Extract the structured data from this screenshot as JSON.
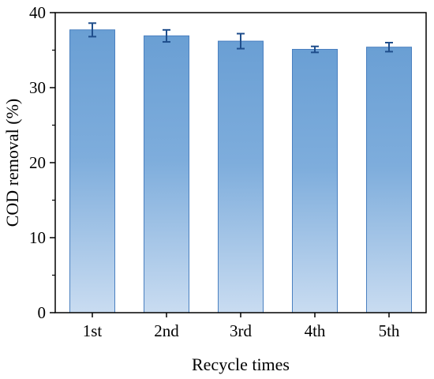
{
  "chart_data": {
    "type": "bar",
    "categories": [
      "1st",
      "2nd",
      "3rd",
      "4th",
      "5th"
    ],
    "values": [
      37.7,
      36.9,
      36.2,
      35.1,
      35.4
    ],
    "errors": [
      0.9,
      0.8,
      1.0,
      0.4,
      0.6
    ],
    "xlabel": "Recycle times",
    "ylabel": "COD removal (%)",
    "ylim": [
      0,
      40
    ],
    "yticks": [
      0,
      10,
      20,
      30,
      40
    ],
    "grid": false,
    "colors": {
      "bar_top": "#6a9fd4",
      "bar_bottom": "#c9dcf1",
      "bar_edge": "#4a80c0",
      "error_bar": "#1f4e8c",
      "axis": "#000000"
    }
  }
}
